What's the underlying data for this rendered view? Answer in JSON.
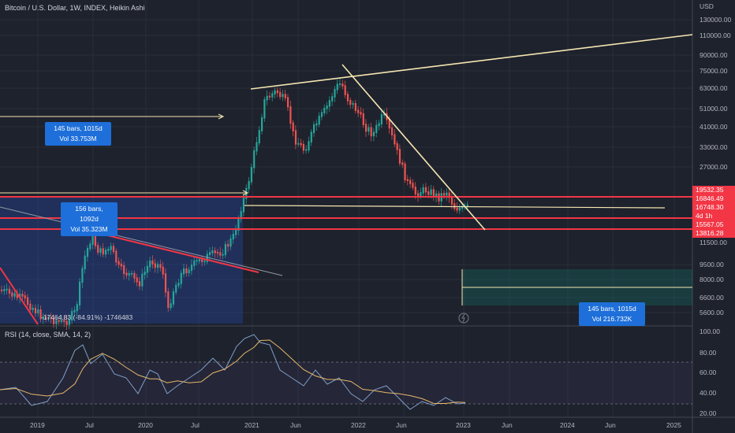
{
  "legend": {
    "title": "Bitcoin / U.S. Dollar, 1W, INDEX, Heikin Ashi"
  },
  "rsi_legend": {
    "title": "RSI (14, close, SMA, 14, 2)"
  },
  "price_axis": {
    "ticks": [
      "USD",
      "130000.00",
      "110000.00",
      "90000.00",
      "75000.00",
      "63000.00",
      "51000.00",
      "41000.00",
      "33000.00",
      "27000.00",
      "9500.00",
      "8000.00",
      "6600.00",
      "5600.00"
    ]
  },
  "price_tags": [
    {
      "label": "19532.35",
      "color": "#f23645"
    },
    {
      "label": "16846.49",
      "color": "#f23645"
    },
    {
      "label": "16748.30",
      "color": "#f23645"
    },
    {
      "label": "4d 1h",
      "color": "#f23645"
    },
    {
      "label": "15567.05",
      "color": "#f23645"
    },
    {
      "label": "13816.28",
      "color": "#f23645"
    },
    {
      "label": "11500.00",
      "color": ""
    }
  ],
  "rsi_axis": {
    "ticks": [
      "100.00",
      "80.00",
      "60.00",
      "40.00",
      "20.00"
    ]
  },
  "time_axis": {
    "labels": [
      "2019",
      "Jul",
      "2020",
      "Jul",
      "2021",
      "Jun",
      "2022",
      "Jun",
      "2023",
      "Jun",
      "2024",
      "Jun",
      "2025"
    ]
  },
  "info_boxes": {
    "box1": {
      "line1": "145 bars, 1015d",
      "line2": "Vol 33.753M"
    },
    "box2": {
      "line1": "156 bars, 1092d",
      "line2": "Vol 35.323M"
    },
    "box3": {
      "line1": "145 bars, 1015d",
      "line2": "Vol 216.732K"
    }
  },
  "measure_text": "-17464.83 (-84.91%) -1746483",
  "colors": {
    "up": "#26a69a",
    "down": "#ef5350",
    "trend_line": "#f5e6b0",
    "support": "#f23645",
    "measure_fill": "#2962ff"
  }
}
